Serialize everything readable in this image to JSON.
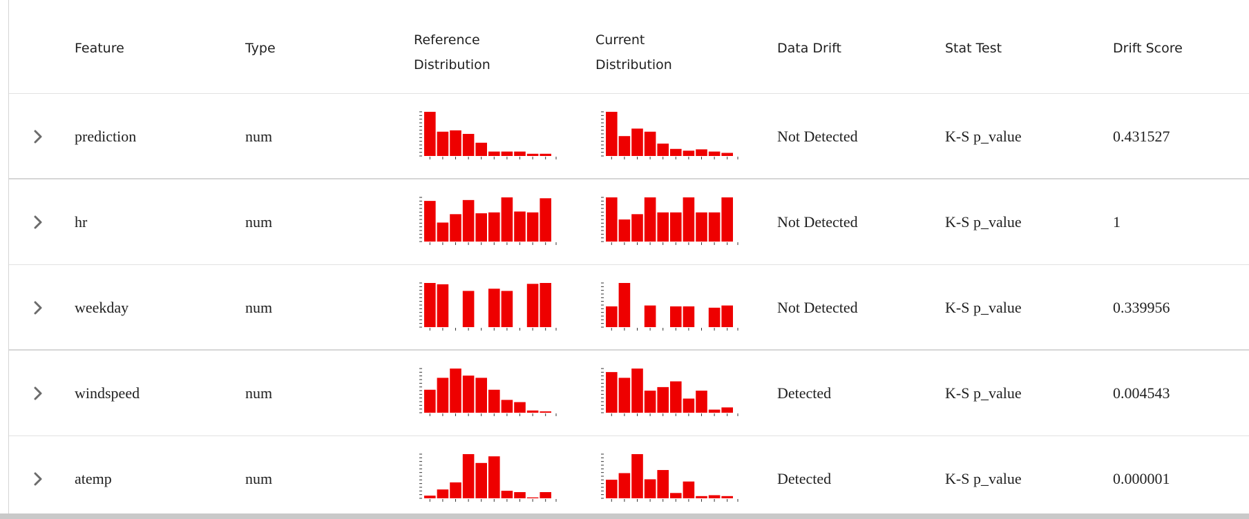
{
  "header": {
    "feature": "Feature",
    "type": "Type",
    "reference_line1": "Reference",
    "reference_line2": "Distribution",
    "current_line1": "Current",
    "current_line2": "Distribution",
    "data_drift": "Data Drift",
    "stat_test": "Stat Test",
    "drift_score": "Drift Score"
  },
  "colors": {
    "bar": "#ee0000",
    "axis": "#333333"
  },
  "rows": [
    {
      "feature": "prediction",
      "type": "num",
      "data_drift": "Not Detected",
      "stat_test": "K-S p_value",
      "drift_score": "0.431527",
      "reference_hist": [
        1.0,
        0.55,
        0.58,
        0.5,
        0.3,
        0.1,
        0.1,
        0.1,
        0.05,
        0.05
      ],
      "current_hist": [
        1.0,
        0.45,
        0.62,
        0.55,
        0.28,
        0.16,
        0.12,
        0.15,
        0.1,
        0.07
      ]
    },
    {
      "feature": "hr",
      "type": "num",
      "data_drift": "Not Detected",
      "stat_test": "K-S p_value",
      "drift_score": "1",
      "reference_hist": [
        0.92,
        0.43,
        0.62,
        0.94,
        0.64,
        0.66,
        1.0,
        0.68,
        0.66,
        0.98
      ],
      "current_hist": [
        1.0,
        0.5,
        0.62,
        1.0,
        0.66,
        0.66,
        1.0,
        0.66,
        0.66,
        1.0
      ]
    },
    {
      "feature": "weekday",
      "type": "num",
      "data_drift": "Not Detected",
      "stat_test": "K-S p_value",
      "drift_score": "0.339956",
      "reference_hist": [
        1.0,
        0.97,
        0,
        0.82,
        0,
        0.87,
        0.82,
        0,
        0.98,
        1.0
      ],
      "current_hist": [
        0.47,
        1.0,
        0,
        0.49,
        0,
        0.47,
        0.47,
        0,
        0.44,
        0.49
      ]
    },
    {
      "feature": "windspeed",
      "type": "num",
      "data_drift": "Detected",
      "stat_test": "K-S p_value",
      "drift_score": "0.004543",
      "reference_hist": [
        0.52,
        0.79,
        1.0,
        0.84,
        0.79,
        0.52,
        0.29,
        0.24,
        0.05,
        0.03
      ],
      "current_hist": [
        0.92,
        0.79,
        1.0,
        0.5,
        0.58,
        0.71,
        0.32,
        0.5,
        0.07,
        0.12
      ]
    },
    {
      "feature": "atemp",
      "type": "num",
      "data_drift": "Detected",
      "stat_test": "K-S p_value",
      "drift_score": "0.000001",
      "reference_hist": [
        0.06,
        0.2,
        0.36,
        1.0,
        0.8,
        0.95,
        0.17,
        0.14,
        0.02,
        0.14
      ],
      "current_hist": [
        0.42,
        0.57,
        1.0,
        0.43,
        0.64,
        0.12,
        0.38,
        0.05,
        0.07,
        0.05
      ]
    }
  ]
}
